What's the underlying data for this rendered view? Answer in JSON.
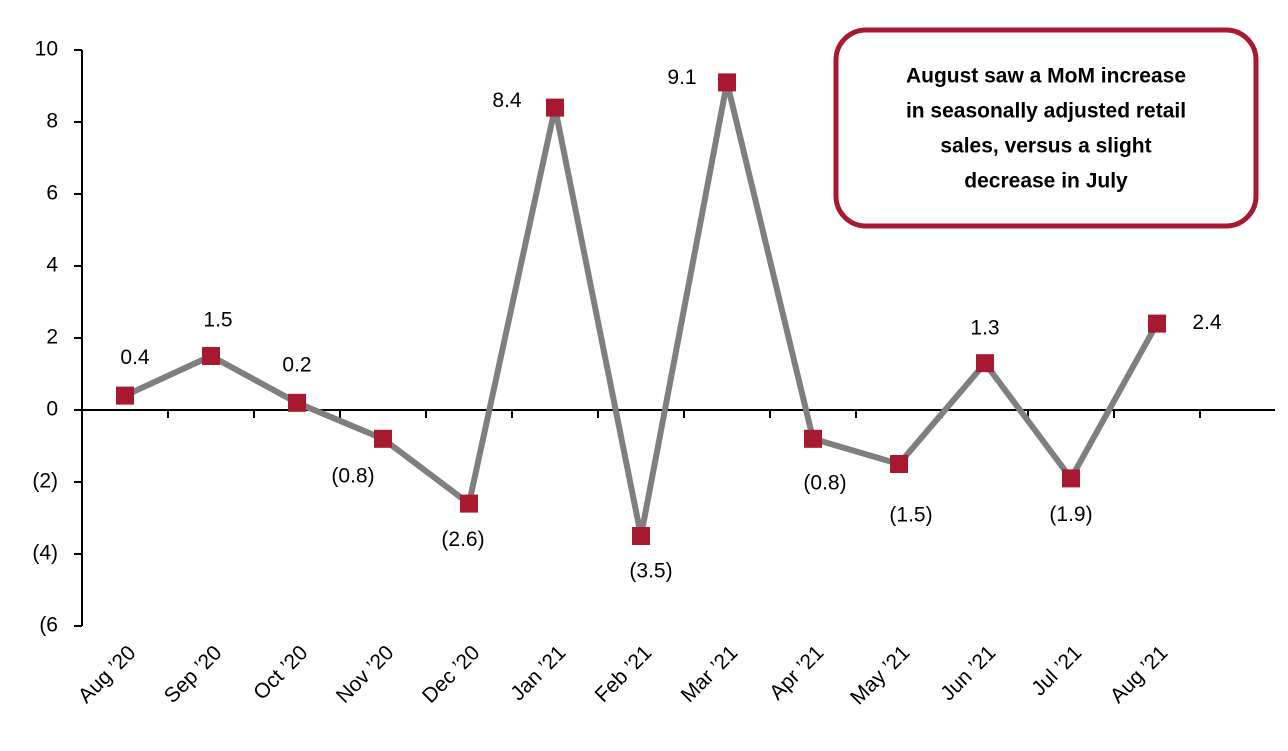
{
  "chart_data": {
    "type": "line",
    "categories": [
      "Aug ’20",
      "Sep ’20",
      "Oct ’20",
      "Nov ’20",
      "Dec ’20",
      "Jan ’21",
      "Feb ’21",
      "Mar ’21",
      "Apr ’21",
      "May ’21",
      "Jun ’21",
      "Jul ’21",
      "Aug ’21"
    ],
    "series": [
      {
        "color": "#7f7f7f",
        "marker_color": "#a6192e",
        "values": [
          0.4,
          1.5,
          0.2,
          -0.8,
          -2.6,
          8.4,
          -3.5,
          9.1,
          -0.8,
          -1.5,
          1.3,
          -1.9,
          2.4
        ],
        "value_labels": [
          "0.4",
          "1.5",
          "0.2",
          "(0.8)",
          "(2.6)",
          "8.4",
          "(3.5)",
          "9.1",
          "(0.8)",
          "(1.5)",
          "1.3",
          "(1.9)",
          "2.4"
        ]
      }
    ],
    "ylim": [
      -6,
      10
    ],
    "yticks": [
      10,
      8,
      6,
      4,
      2,
      0,
      {
        "value": -2,
        "label": "(2)"
      },
      {
        "value": -4,
        "label": "(4)"
      },
      {
        "value": -6,
        "label": "(6"
      }
    ],
    "annotation": [
      "August saw a MoM  increase",
      "in seasonally adjusted retail",
      "sales, versus a slight",
      "decrease in July"
    ]
  }
}
